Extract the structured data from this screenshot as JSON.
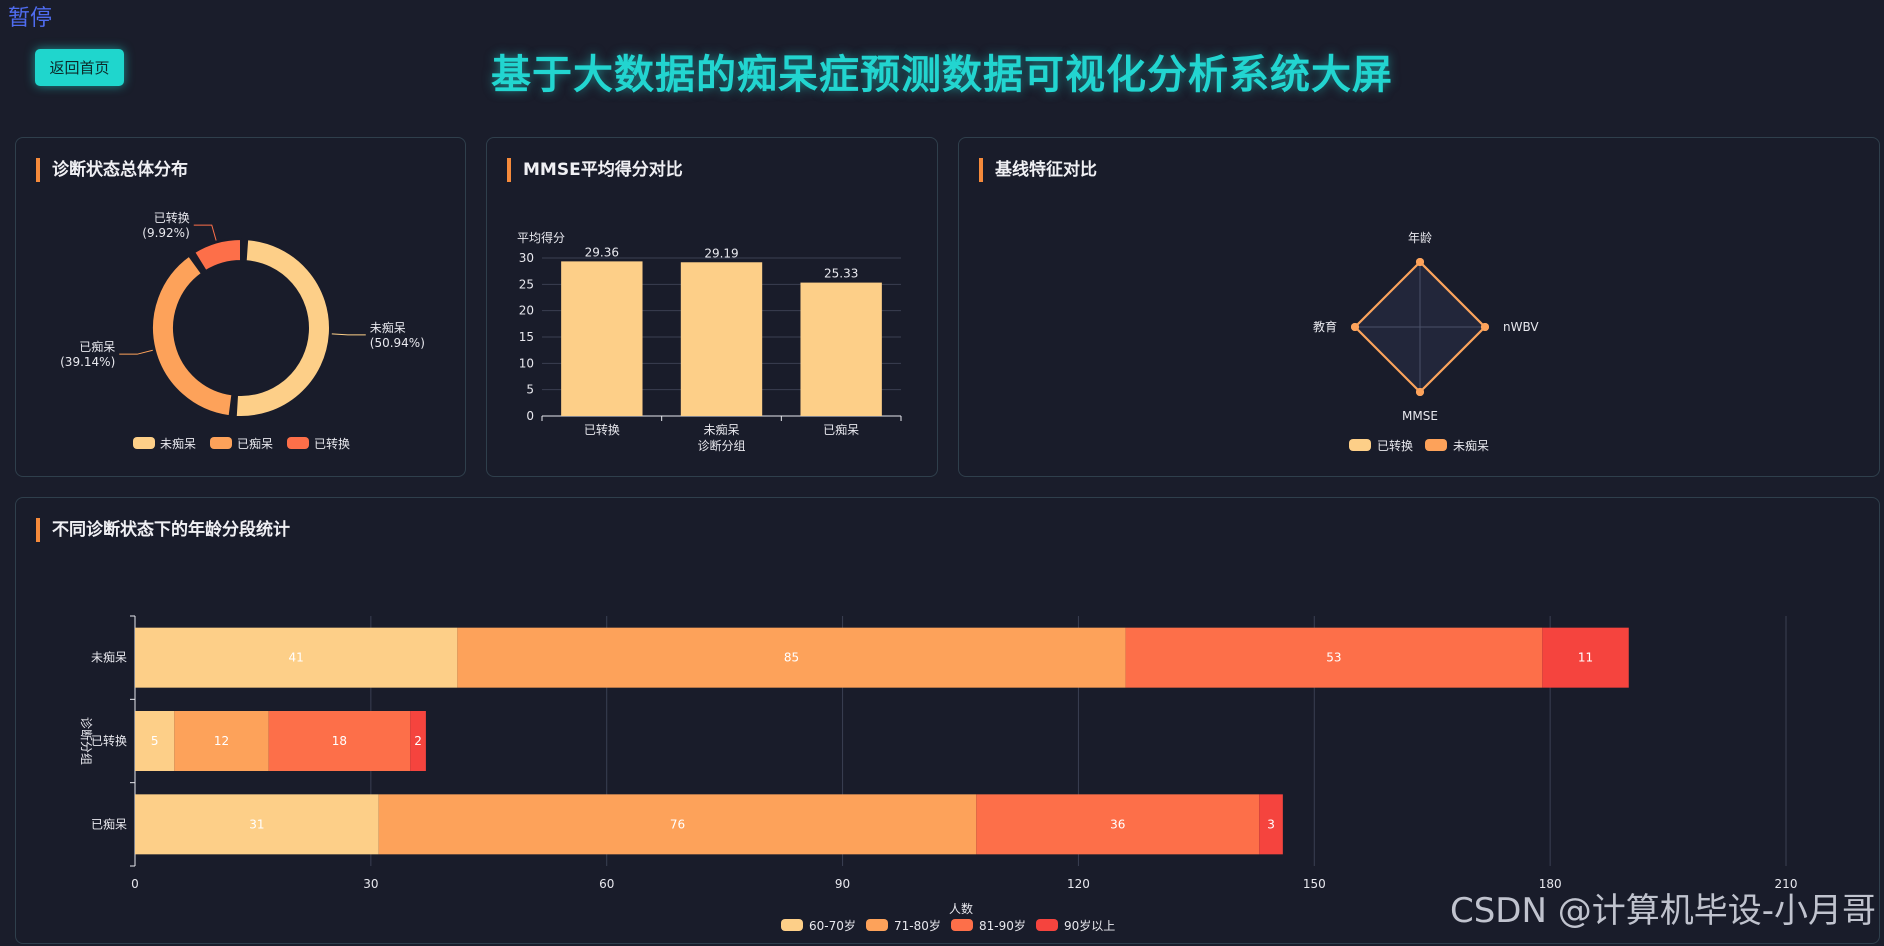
{
  "header": {
    "pause_label": "暂停",
    "home_button": "返回首页",
    "title": "基于大数据的痴呆症预测数据可视化分析系统大屏"
  },
  "panels": {
    "pie_title": "诊断状态总体分布",
    "bar_title": "MMSE平均得分对比",
    "radar_title": "基线特征对比",
    "stack_title": "不同诊断状态下的年龄分段统计"
  },
  "colors": {
    "c1": "#fdcf88",
    "c2": "#fda25a",
    "c3": "#fd6f49",
    "c4": "#f5443e",
    "accent": "#22d5d0"
  },
  "watermark": "CSDN @计算机毕设-小月哥",
  "chart_data": [
    {
      "type": "pie",
      "donut": true,
      "slices": [
        {
          "label": "未痴呆",
          "value": 50.94,
          "display": "(50.94%)"
        },
        {
          "label": "已痴呆",
          "value": 39.14,
          "display": "(39.14%)"
        },
        {
          "label": "已转换",
          "value": 9.92,
          "display": "(9.92%)"
        }
      ],
      "legend": [
        "未痴呆",
        "已痴呆",
        "已转换"
      ],
      "legend_position": "bottom"
    },
    {
      "type": "bar",
      "categories": [
        "已转换",
        "未痴呆",
        "已痴呆"
      ],
      "values": [
        29.36,
        29.19,
        25.33
      ],
      "value_labels": [
        "29.36",
        "29.19",
        "25.33"
      ],
      "xlabel": "诊断分组",
      "ylabel": "平均得分",
      "ylim": [
        0,
        30
      ],
      "yticks": [
        "0",
        "5",
        "10",
        "15",
        "20",
        "25",
        "30"
      ],
      "grid": true
    },
    {
      "type": "radar",
      "indicators": [
        "年龄",
        "nWBV",
        "MMSE",
        "教育"
      ],
      "series": [
        {
          "name": "已转换",
          "values": [
            1,
            1,
            1,
            1
          ]
        },
        {
          "name": "未痴呆",
          "values": [
            1,
            1,
            1,
            1
          ]
        }
      ],
      "legend_position": "bottom"
    },
    {
      "type": "bar",
      "orientation": "horizontal",
      "stacked": true,
      "categories": [
        "未痴呆",
        "已转换",
        "已痴呆"
      ],
      "series": [
        {
          "name": "60-70岁",
          "values": [
            41,
            5,
            31
          ]
        },
        {
          "name": "71-80岁",
          "values": [
            85,
            12,
            76
          ]
        },
        {
          "name": "81-90岁",
          "values": [
            53,
            18,
            36
          ]
        },
        {
          "name": "90岁以上",
          "values": [
            11,
            2,
            3
          ]
        }
      ],
      "xlabel": "人数",
      "ylabel": "诊断分组",
      "xlim": [
        0,
        210
      ],
      "xticks": [
        "0",
        "30",
        "60",
        "90",
        "120",
        "150",
        "180",
        "210"
      ],
      "grid": true,
      "legend_position": "bottom"
    }
  ]
}
